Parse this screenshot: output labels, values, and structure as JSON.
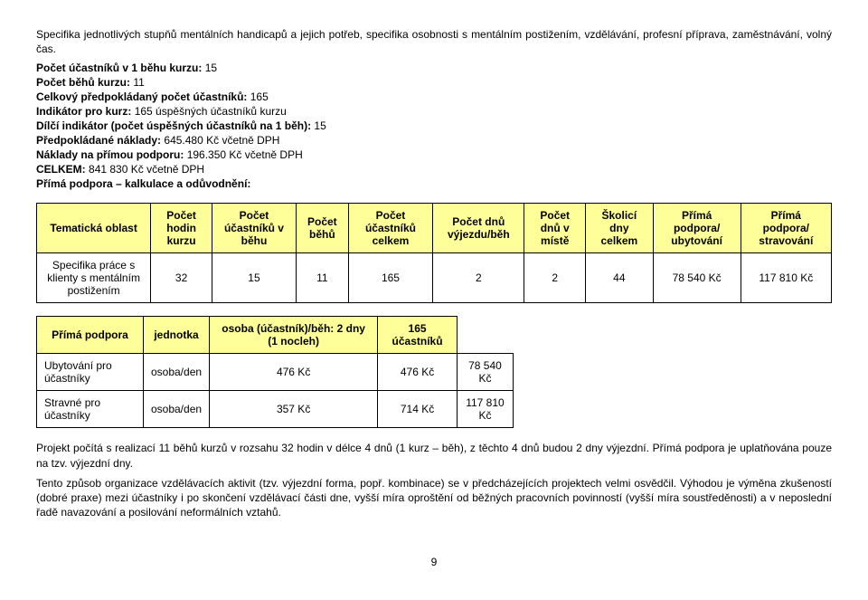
{
  "intro": "Specifika jednotlivých stupňů mentálních handicapů a jejich potřeb, specifika osobnosti s mentálním postižením, vzdělávání, profesní příprava, zaměstnávání, volný čas.",
  "lines": {
    "l1a": "Počet účastníků v 1 běhu kurzu:",
    "l1b": "15",
    "l2a": "Počet běhů kurzu:",
    "l2b": "11",
    "l3a": "Celkový předpokládaný počet účastníků:",
    "l3b": "165",
    "l4a": "Indikátor pro kurz:",
    "l4b": "165 úspěšných účastníků kurzu",
    "l5a": "Dílčí indikátor (počet úspěšných účastníků na 1 běh):",
    "l5b": "15",
    "l6a": "Předpokládané náklady:",
    "l6b": "645.480 Kč včetně DPH",
    "l7a": "Náklady na přímou podporu:",
    "l7b": "196.350 Kč včetně DPH",
    "l8a": "CELKEM:",
    "l8b": "841 830 Kč včetně DPH",
    "l9": "Přímá podpora – kalkulace a odůvodnění:"
  },
  "table1": {
    "headers": [
      "Tematická oblast",
      "Počet hodin kurzu",
      "Počet účastníků v běhu",
      "Počet běhů",
      "Počet účastníků celkem",
      "Počet dnů výjezdu/běh",
      "Počet dnů v místě",
      "Školicí dny celkem",
      "Přímá podpora/ ubytování",
      "Přímá podpora/ stravování"
    ],
    "row": {
      "label": "Specifika práce s klienty s mentálním postižením",
      "c1": "32",
      "c2": "15",
      "c3": "11",
      "c4": "165",
      "c5": "2",
      "c6": "2",
      "c7": "44",
      "c8": "78 540 Kč",
      "c9": "117 810 Kč"
    }
  },
  "table2": {
    "headers": [
      "Přímá podpora",
      "jednotka",
      "osoba (účastník)/běh: 2 dny (1 nocleh)",
      "165 účastníků"
    ],
    "rows": [
      {
        "a": "Ubytování pro účastníky",
        "b": "osoba/den",
        "c": "476 Kč",
        "d": "476 Kč",
        "e": "78 540 Kč"
      },
      {
        "a": "Stravné pro účastníky",
        "b": "osoba/den",
        "c": "357 Kč",
        "d": "714 Kč",
        "e": "117 810 Kč"
      }
    ]
  },
  "para2": "Projekt počítá s realizací 11 běhů kurzů v rozsahu 32 hodin v délce 4 dnů (1 kurz – běh), z těchto 4 dnů budou 2 dny výjezdní. Přímá podpora je uplatňována pouze na tzv. výjezdní dny.",
  "para3": "Tento způsob organizace vzdělávacích aktivit (tzv. výjezdní forma, popř. kombinace) se v předcházejících projektech velmi osvědčil. Výhodou je výměna zkušeností (dobré praxe) mezi účastníky i po skončení vzdělávací části dne, vyšší míra oproštění od běžných pracovních povinností (vyšší míra soustředěnosti) a v neposlední řadě navazování a posilování neformálních vztahů.",
  "pagenum": "9"
}
